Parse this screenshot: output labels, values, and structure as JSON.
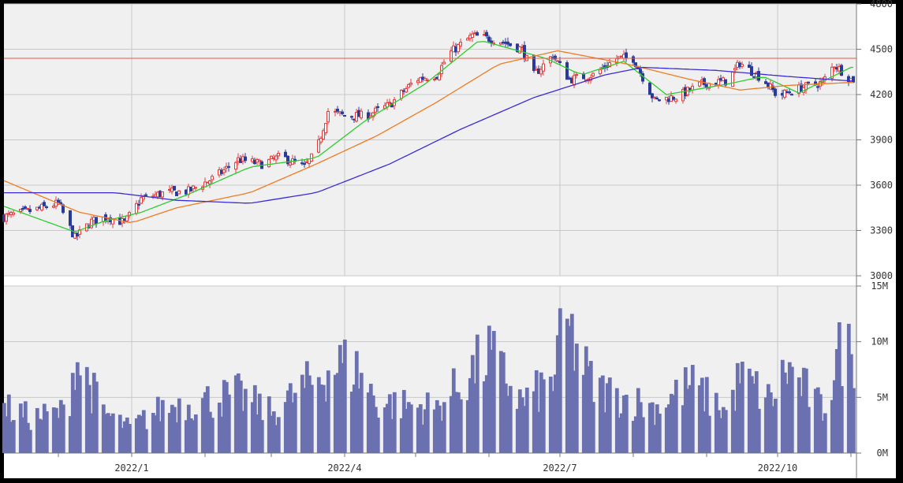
{
  "chart_data": [
    {
      "type": "candlestick",
      "x_tick_labels": [
        "2022/1",
        "2022/4",
        "2022/7",
        "2022/10"
      ],
      "y_tick_labels": [
        "4800",
        "4500",
        "4200",
        "3900",
        "3600",
        "3300",
        "3000"
      ],
      "ylim": [
        3000,
        4800
      ],
      "grid": true,
      "reference_line": 4440,
      "approx_close_path": [
        {
          "d": "2021-11-08",
          "v": 3390
        },
        {
          "d": "2021-11-22",
          "v": 3440
        },
        {
          "d": "2021-12-01",
          "v": 3480
        },
        {
          "d": "2021-12-08",
          "v": 3250
        },
        {
          "d": "2021-12-15",
          "v": 3360
        },
        {
          "d": "2021-12-22",
          "v": 3390
        },
        {
          "d": "2021-12-29",
          "v": 3350
        },
        {
          "d": "2022-01-05",
          "v": 3510
        },
        {
          "d": "2022-01-15",
          "v": 3550
        },
        {
          "d": "2022-01-25",
          "v": 3560
        },
        {
          "d": "2022-02-05",
          "v": 3650
        },
        {
          "d": "2022-02-15",
          "v": 3770
        },
        {
          "d": "2022-02-25",
          "v": 3740
        },
        {
          "d": "2022-03-05",
          "v": 3790
        },
        {
          "d": "2022-03-15",
          "v": 3720
        },
        {
          "d": "2022-03-20",
          "v": 3820
        },
        {
          "d": "2022-03-25",
          "v": 4090
        },
        {
          "d": "2022-04-01",
          "v": 4060
        },
        {
          "d": "2022-04-10",
          "v": 4060
        },
        {
          "d": "2022-04-20",
          "v": 4130
        },
        {
          "d": "2022-05-01",
          "v": 4300
        },
        {
          "d": "2022-05-10",
          "v": 4330
        },
        {
          "d": "2022-05-15",
          "v": 4470
        },
        {
          "d": "2022-05-25",
          "v": 4590
        },
        {
          "d": "2022-06-05",
          "v": 4560
        },
        {
          "d": "2022-06-15",
          "v": 4500
        },
        {
          "d": "2022-06-20",
          "v": 4330
        },
        {
          "d": "2022-06-28",
          "v": 4460
        },
        {
          "d": "2022-07-05",
          "v": 4300
        },
        {
          "d": "2022-07-15",
          "v": 4330
        },
        {
          "d": "2022-07-25",
          "v": 4440
        },
        {
          "d": "2022-08-01",
          "v": 4440
        },
        {
          "d": "2022-08-10",
          "v": 4160
        },
        {
          "d": "2022-08-20",
          "v": 4190
        },
        {
          "d": "2022-08-30",
          "v": 4270
        },
        {
          "d": "2022-09-10",
          "v": 4290
        },
        {
          "d": "2022-09-15",
          "v": 4410
        },
        {
          "d": "2022-09-25",
          "v": 4300
        },
        {
          "d": "2022-10-01",
          "v": 4190
        },
        {
          "d": "2022-10-10",
          "v": 4240
        },
        {
          "d": "2022-10-20",
          "v": 4280
        },
        {
          "d": "2022-10-25",
          "v": 4400
        },
        {
          "d": "2022-11-01",
          "v": 4300
        }
      ],
      "moving_averages": [
        {
          "color": "#2ecc2e",
          "points": [
            {
              "d": "2021-11-08",
              "v": 3460
            },
            {
              "d": "2021-12-08",
              "v": 3290
            },
            {
              "d": "2021-12-20",
              "v": 3360
            },
            {
              "d": "2022-01-05",
              "v": 3420
            },
            {
              "d": "2022-01-25",
              "v": 3540
            },
            {
              "d": "2022-02-20",
              "v": 3720
            },
            {
              "d": "2022-03-20",
              "v": 3780
            },
            {
              "d": "2022-04-10",
              "v": 4030
            },
            {
              "d": "2022-05-05",
              "v": 4270
            },
            {
              "d": "2022-05-28",
              "v": 4560
            },
            {
              "d": "2022-06-25",
              "v": 4440
            },
            {
              "d": "2022-07-10",
              "v": 4330
            },
            {
              "d": "2022-07-28",
              "v": 4420
            },
            {
              "d": "2022-08-15",
              "v": 4200
            },
            {
              "d": "2022-09-10",
              "v": 4270
            },
            {
              "d": "2022-09-25",
              "v": 4320
            },
            {
              "d": "2022-10-10",
              "v": 4210
            },
            {
              "d": "2022-11-01",
              "v": 4380
            }
          ]
        },
        {
          "color": "#f07b22",
          "points": [
            {
              "d": "2021-11-08",
              "v": 3630
            },
            {
              "d": "2021-12-10",
              "v": 3420
            },
            {
              "d": "2022-01-01",
              "v": 3350
            },
            {
              "d": "2022-01-20",
              "v": 3450
            },
            {
              "d": "2022-02-20",
              "v": 3550
            },
            {
              "d": "2022-03-20",
              "v": 3740
            },
            {
              "d": "2022-04-15",
              "v": 3930
            },
            {
              "d": "2022-05-10",
              "v": 4150
            },
            {
              "d": "2022-06-05",
              "v": 4400
            },
            {
              "d": "2022-06-30",
              "v": 4490
            },
            {
              "d": "2022-07-30",
              "v": 4400
            },
            {
              "d": "2022-08-25",
              "v": 4300
            },
            {
              "d": "2022-09-15",
              "v": 4230
            },
            {
              "d": "2022-10-05",
              "v": 4260
            },
            {
              "d": "2022-11-01",
              "v": 4280
            }
          ]
        },
        {
          "color": "#3a2bd6",
          "points": [
            {
              "d": "2021-11-08",
              "v": 3550
            },
            {
              "d": "2021-12-25",
              "v": 3550
            },
            {
              "d": "2022-01-20",
              "v": 3500
            },
            {
              "d": "2022-02-20",
              "v": 3480
            },
            {
              "d": "2022-03-20",
              "v": 3550
            },
            {
              "d": "2022-04-20",
              "v": 3740
            },
            {
              "d": "2022-05-20",
              "v": 3970
            },
            {
              "d": "2022-06-20",
              "v": 4180
            },
            {
              "d": "2022-07-20",
              "v": 4330
            },
            {
              "d": "2022-08-05",
              "v": 4380
            },
            {
              "d": "2022-09-05",
              "v": 4360
            },
            {
              "d": "2022-10-05",
              "v": 4320
            },
            {
              "d": "2022-11-01",
              "v": 4290
            }
          ]
        }
      ]
    },
    {
      "type": "bar",
      "y_tick_labels": [
        "15M",
        "10M",
        "5M",
        "0M"
      ],
      "ylim": [
        0,
        15000000
      ],
      "grid": true,
      "color": "#6a70b0",
      "approx_volume_path": [
        {
          "d": "2021-11-08",
          "v": 4500000
        },
        {
          "d": "2021-11-20",
          "v": 3500000
        },
        {
          "d": "2021-12-05",
          "v": 4200000
        },
        {
          "d": "2021-12-08",
          "v": 9700000
        },
        {
          "d": "2021-12-20",
          "v": 4000000
        },
        {
          "d": "2021-12-31",
          "v": 2500000
        },
        {
          "d": "2022-01-15",
          "v": 4600000
        },
        {
          "d": "2022-02-15",
          "v": 5800000
        },
        {
          "d": "2022-03-01",
          "v": 4000000
        },
        {
          "d": "2022-03-20",
          "v": 7400000
        },
        {
          "d": "2022-03-28",
          "v": 8800000
        },
        {
          "d": "2022-04-05",
          "v": 8600000
        },
        {
          "d": "2022-04-15",
          "v": 5000000
        },
        {
          "d": "2022-05-10",
          "v": 4500000
        },
        {
          "d": "2022-06-01",
          "v": 9800000
        },
        {
          "d": "2022-06-15",
          "v": 5000000
        },
        {
          "d": "2022-06-28",
          "v": 7200000
        },
        {
          "d": "2022-07-03",
          "v": 12900000
        },
        {
          "d": "2022-07-15",
          "v": 6500000
        },
        {
          "d": "2022-08-10",
          "v": 4500000
        },
        {
          "d": "2022-08-25",
          "v": 6800000
        },
        {
          "d": "2022-09-10",
          "v": 4000000
        },
        {
          "d": "2022-09-15",
          "v": 7600000
        },
        {
          "d": "2022-09-28",
          "v": 5200000
        },
        {
          "d": "2022-10-05",
          "v": 8400000
        },
        {
          "d": "2022-10-20",
          "v": 4300000
        },
        {
          "d": "2022-10-28",
          "v": 10600000
        },
        {
          "d": "2022-11-01",
          "v": 9900000
        }
      ]
    }
  ]
}
